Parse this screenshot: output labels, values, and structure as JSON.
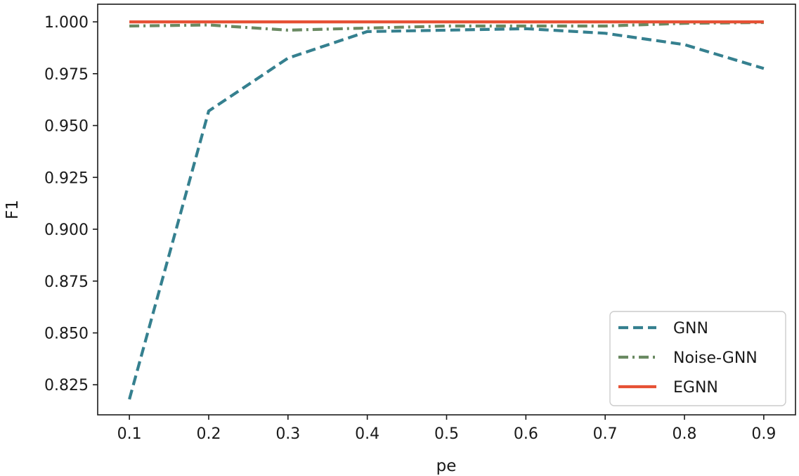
{
  "chart_data": {
    "type": "line",
    "title": "",
    "xlabel": "pe",
    "ylabel": "F1",
    "x": [
      0.1,
      0.2,
      0.3,
      0.4,
      0.5,
      0.6,
      0.7,
      0.8,
      0.9
    ],
    "xticks": [
      "0.1",
      "0.2",
      "0.3",
      "0.4",
      "0.5",
      "0.6",
      "0.7",
      "0.8",
      "0.9"
    ],
    "yticks": [
      "0.825",
      "0.850",
      "0.875",
      "0.900",
      "0.925",
      "0.950",
      "0.975",
      "1.000"
    ],
    "xlim": [
      0.06,
      0.94
    ],
    "ylim": [
      0.8105,
      1.0085
    ],
    "grid": false,
    "legend_position": "lower-right",
    "series": [
      {
        "name": "GNN",
        "color": "#35808f",
        "style": "dashed",
        "values": [
          0.818,
          0.957,
          0.9825,
          0.9953,
          0.996,
          0.9967,
          0.9945,
          0.989,
          0.9775
        ]
      },
      {
        "name": "Noise-GNN",
        "color": "#6a8a62",
        "style": "dashdot",
        "values": [
          0.998,
          0.9985,
          0.996,
          0.997,
          0.998,
          0.998,
          0.998,
          0.9993,
          0.9997
        ]
      },
      {
        "name": "EGNN",
        "color": "#e65135",
        "style": "solid",
        "values": [
          1.0,
          1.0,
          1.0,
          1.0,
          1.0,
          1.0,
          1.0,
          1.0,
          1.0
        ]
      }
    ]
  }
}
